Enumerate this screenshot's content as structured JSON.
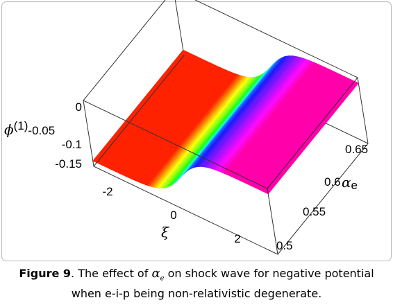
{
  "chart_data": {
    "type": "surface",
    "title": "",
    "xlabel": "ξ",
    "ylabel": "αe",
    "zlabel": "φ(1)",
    "xticks": [
      "-2",
      "0",
      "2"
    ],
    "yticks": [
      "0.5",
      "0.55",
      "0.6",
      "0.65"
    ],
    "zticks": [
      "0",
      "-0.05",
      "-0.1",
      "-0.15"
    ],
    "xlim": [
      -3.2,
      3.2
    ],
    "ylim": [
      0.5,
      0.7
    ],
    "zlim": [
      -0.17,
      0.01
    ],
    "surface": {
      "function": "shock",
      "z_left": -0.155,
      "z_right": -0.005,
      "front_at_xi": 0,
      "profile_xi": [
        -3,
        -2,
        -1,
        -0.5,
        0,
        0.5,
        1,
        2,
        3
      ],
      "profile_phi": [
        -0.155,
        -0.153,
        -0.14,
        -0.12,
        -0.08,
        -0.04,
        -0.02,
        -0.007,
        -0.005
      ]
    }
  },
  "labels": {
    "ylabel_text": "α",
    "ylabel_sub": "e",
    "zlabel_text": "ϕ",
    "zlabel_sup": "(1)",
    "zlabel_separator": "-0.05"
  },
  "caption": {
    "label": "Figure 9",
    "text_a": ". The effect of ",
    "symbol": "α",
    "symbol_sub": "e",
    "text_b": "  on shock wave for negative potential",
    "line2": "when e-i-p being non-relativistic degenerate."
  }
}
